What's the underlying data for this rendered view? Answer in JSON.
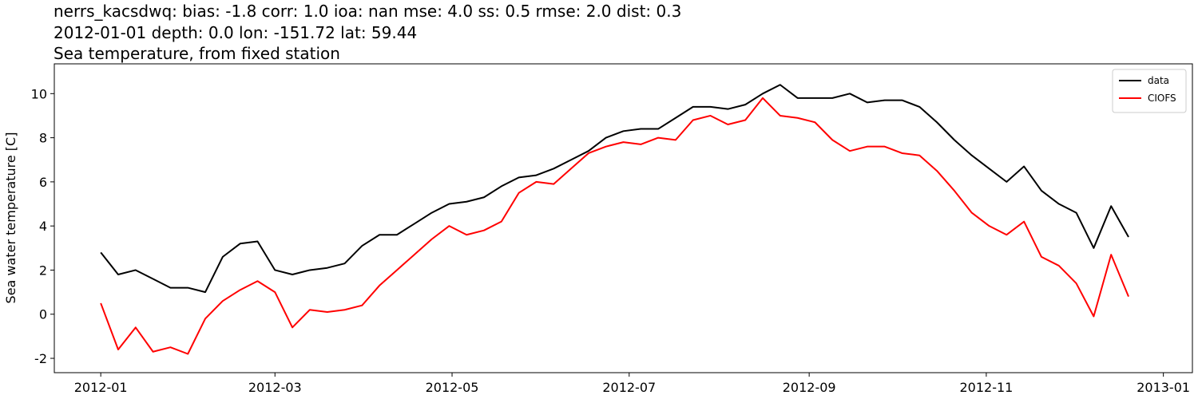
{
  "chart_data": {
    "type": "line",
    "title": "nerrs_kacsdwq: bias: -1.8  corr: 1.0  ioa: nan  mse: 4.0  ss: 0.5  rmse: 2.0  dist: 0.3",
    "subtitle": "2012-01-01 depth: 0.0 lon: -151.72 lat: 59.44",
    "subtitle2": "Sea temperature, from fixed station",
    "y_label": "Sea water temperature [C]",
    "legend": "upper right",
    "x": [
      "2012-01-01",
      "2012-01-07",
      "2012-01-13",
      "2012-01-19",
      "2012-01-25",
      "2012-01-31",
      "2012-02-06",
      "2012-02-12",
      "2012-02-18",
      "2012-02-24",
      "2012-03-01",
      "2012-03-07",
      "2012-03-13",
      "2012-03-19",
      "2012-03-25",
      "2012-03-31",
      "2012-04-06",
      "2012-04-12",
      "2012-04-18",
      "2012-04-24",
      "2012-04-30",
      "2012-05-06",
      "2012-05-12",
      "2012-05-18",
      "2012-05-24",
      "2012-05-30",
      "2012-06-05",
      "2012-06-11",
      "2012-06-17",
      "2012-06-23",
      "2012-06-29",
      "2012-07-05",
      "2012-07-11",
      "2012-07-17",
      "2012-07-23",
      "2012-07-29",
      "2012-08-04",
      "2012-08-10",
      "2012-08-16",
      "2012-08-22",
      "2012-08-28",
      "2012-09-03",
      "2012-09-09",
      "2012-09-15",
      "2012-09-21",
      "2012-09-27",
      "2012-10-03",
      "2012-10-09",
      "2012-10-15",
      "2012-10-21",
      "2012-10-27",
      "2012-11-02",
      "2012-11-08",
      "2012-11-14",
      "2012-11-20",
      "2012-11-26",
      "2012-12-02",
      "2012-12-08",
      "2012-12-14",
      "2012-12-20"
    ],
    "series": [
      {
        "name": "data",
        "color": "#000000",
        "values": [
          2.8,
          1.8,
          2.0,
          1.6,
          1.2,
          1.2,
          1.0,
          2.6,
          3.2,
          3.3,
          2.0,
          1.8,
          2.0,
          2.1,
          2.3,
          3.1,
          3.6,
          3.6,
          4.1,
          4.6,
          5.0,
          5.1,
          5.3,
          5.8,
          6.2,
          6.3,
          6.6,
          7.0,
          7.4,
          8.0,
          8.3,
          8.4,
          8.4,
          8.9,
          9.4,
          9.4,
          9.3,
          9.5,
          10.0,
          10.4,
          9.8,
          9.8,
          9.8,
          10.0,
          9.6,
          9.7,
          9.7,
          9.4,
          8.7,
          7.9,
          7.2,
          6.6,
          6.0,
          6.7,
          5.6,
          5.0,
          4.6,
          3.0,
          4.9,
          3.5
        ]
      },
      {
        "name": "CIOFS",
        "color": "#ff0000",
        "values": [
          0.5,
          -1.6,
          -0.6,
          -1.7,
          -1.5,
          -1.8,
          -0.2,
          0.6,
          1.1,
          1.5,
          1.0,
          -0.6,
          0.2,
          0.1,
          0.2,
          0.4,
          1.3,
          2.0,
          2.7,
          3.4,
          4.0,
          3.6,
          3.8,
          4.2,
          5.5,
          6.0,
          5.9,
          6.6,
          7.3,
          7.6,
          7.8,
          7.7,
          8.0,
          7.9,
          8.8,
          9.0,
          8.6,
          8.8,
          9.8,
          9.0,
          8.9,
          8.7,
          7.9,
          7.4,
          7.6,
          7.6,
          7.3,
          7.2,
          6.5,
          5.6,
          4.6,
          4.0,
          3.6,
          4.2,
          2.6,
          2.2,
          1.4,
          -0.1,
          2.7,
          0.8
        ]
      }
    ],
    "xlim": [
      "2011-12-16",
      "2013-01-11"
    ],
    "xticks": [
      {
        "value": "2012-01-01",
        "label": "2012-01"
      },
      {
        "value": "2012-03-01",
        "label": "2012-03"
      },
      {
        "value": "2012-05-01",
        "label": "2012-05"
      },
      {
        "value": "2012-07-01",
        "label": "2012-07"
      },
      {
        "value": "2012-09-01",
        "label": "2012-09"
      },
      {
        "value": "2012-11-01",
        "label": "2012-11"
      },
      {
        "value": "2013-01-01",
        "label": "2013-01"
      }
    ],
    "ylim": [
      -2.65,
      11.35
    ],
    "yticks": [
      -2,
      0,
      2,
      4,
      6,
      8,
      10
    ]
  }
}
